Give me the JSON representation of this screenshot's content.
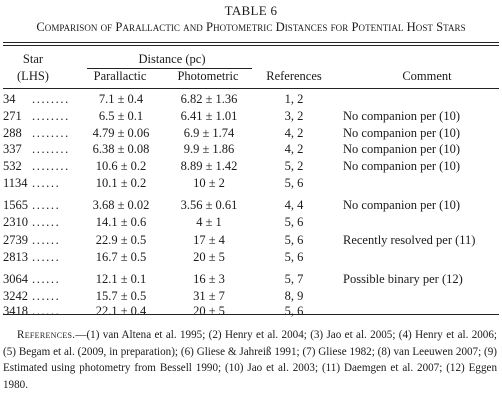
{
  "title": {
    "number": "TABLE 6",
    "caption": "Comparison of Parallactic and Photometric Distances for Potential Host Stars"
  },
  "headers": {
    "star": "Star",
    "star_sub": "(LHS)",
    "distance": "Distance (pc)",
    "parallactic": "Parallactic",
    "photometric": "Photometric",
    "references": "References",
    "comment": "Comment"
  },
  "rows": [
    {
      "star": "34",
      "dots": "........",
      "parallactic": "7.1 ± 0.4",
      "photometric": "6.82 ± 1.36",
      "references": "1, 2",
      "comment": ""
    },
    {
      "star": "271",
      "dots": "........",
      "parallactic": "6.5 ± 0.1",
      "photometric": "6.41 ± 1.01",
      "references": "3, 2",
      "comment": "No companion per (10)"
    },
    {
      "star": "288",
      "dots": "........",
      "parallactic": "4.79 ± 0.06",
      "photometric": "6.9 ± 1.74",
      "references": "4, 2",
      "comment": "No companion per (10)"
    },
    {
      "star": "337",
      "dots": "........",
      "parallactic": "6.38 ± 0.08",
      "photometric": "9.9 ± 1.86",
      "references": "4, 2",
      "comment": "No companion per (10)"
    },
    {
      "star": "532",
      "dots": "........",
      "parallactic": "10.6 ± 0.2",
      "photometric": "8.89 ± 1.42",
      "references": "5, 2",
      "comment": "No companion per (10)"
    },
    {
      "star": "1134",
      "dots": "......",
      "parallactic": "10.1 ± 0.2",
      "photometric": "10 ± 2",
      "references": "5, 6",
      "comment": ""
    },
    {
      "star": "1565",
      "dots": "......",
      "parallactic": "3.68 ± 0.02",
      "photometric": "3.56 ± 0.61",
      "references": "4, 4",
      "comment": "No companion per (10)"
    },
    {
      "star": "2310",
      "dots": "......",
      "parallactic": "14.1 ± 0.6",
      "photometric": "4 ± 1",
      "references": "5, 6",
      "comment": ""
    },
    {
      "star": "2739",
      "dots": "......",
      "parallactic": "22.9 ± 0.5",
      "photometric": "17 ± 4",
      "references": "5, 6",
      "comment": "Recently resolved per (11)"
    },
    {
      "star": "2813",
      "dots": "......",
      "parallactic": "16.7 ± 0.5",
      "photometric": "20 ± 5",
      "references": "5, 6",
      "comment": ""
    },
    {
      "star": "3064",
      "dots": "......",
      "parallactic": "12.1 ± 0.1",
      "photometric": "16 ± 3",
      "references": "5, 7",
      "comment": "Possible binary per (12)"
    },
    {
      "star": "3242",
      "dots": "......",
      "parallactic": "15.7 ± 0.5",
      "photometric": "31 ± 7",
      "references": "8, 9",
      "comment": ""
    },
    {
      "star": "3418",
      "dots": "......",
      "parallactic": "22.1 ± 0.4",
      "photometric": "20 ± 5",
      "references": "5, 6",
      "comment": ""
    }
  ],
  "notes": {
    "label": "References.",
    "text": "—(1) van Altena et al. 1995; (2) Henry et al. 2004; (3) Jao et al. 2005; (4) Henry et al. 2006; (5) Begam et al. (2009, in preparation); (6) Gliese & Jahreiß 1991; (7) Gliese 1982; (8) van Leeuwen 2007; (9) Estimated using photometry from Bessell 1990; (10) Jao et al. 2003; (11) Daemgen et al. 2007; (12) Eggen 1980."
  }
}
